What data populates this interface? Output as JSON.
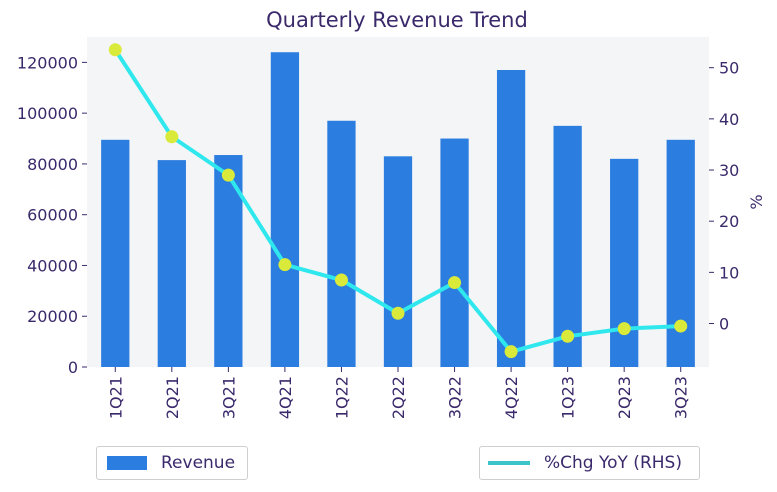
{
  "chart_data": {
    "type": "bar",
    "title": "Quarterly Revenue Trend",
    "categories": [
      "1Q21",
      "2Q21",
      "3Q21",
      "4Q21",
      "1Q22",
      "2Q22",
      "3Q22",
      "4Q22",
      "1Q23",
      "2Q23",
      "3Q23"
    ],
    "series": [
      {
        "name": "Revenue",
        "type": "bar",
        "axis": "left",
        "color": "#2b7de0",
        "values": [
          89500,
          81500,
          83500,
          124000,
          97000,
          83000,
          90000,
          117000,
          95000,
          82000,
          89500
        ]
      },
      {
        "name": "%Chg YoY (RHS)",
        "type": "line",
        "axis": "right",
        "color": "#2ee8ee",
        "marker_color": "#d9ea3a",
        "values": [
          53.5,
          36.5,
          29,
          11.5,
          8.5,
          2,
          8,
          -5.5,
          -2.5,
          -1,
          -0.5
        ]
      }
    ],
    "y_left": {
      "ylim": [
        0,
        130000
      ],
      "ticks": [
        0,
        20000,
        40000,
        60000,
        80000,
        100000,
        120000
      ]
    },
    "y_right": {
      "ylabel": "%",
      "ylim": [
        -8.5,
        56
      ],
      "ticks": [
        0,
        10,
        20,
        30,
        40,
        50
      ]
    },
    "grid": false,
    "legend": [
      "bottom-left",
      "bottom-right"
    ],
    "background_color": "#f4f5f7"
  }
}
